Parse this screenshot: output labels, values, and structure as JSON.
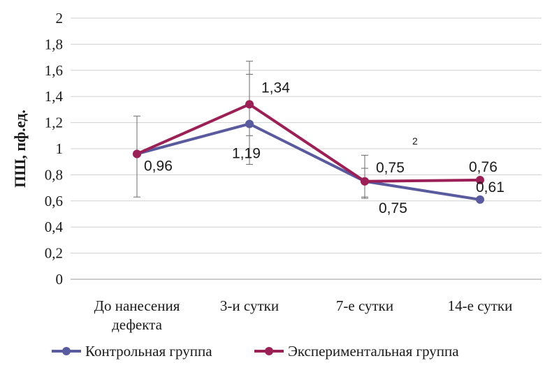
{
  "chart_data": {
    "type": "line",
    "ylabel": "ПШ, пф.ед.",
    "ylim": [
      0,
      2
    ],
    "yticks": [
      "0",
      "0,2",
      "0,4",
      "0,6",
      "0,8",
      "1",
      "1,2",
      "1,4",
      "1,6",
      "1,8",
      "2"
    ],
    "categories": [
      [
        "До нанесения",
        "дефекта"
      ],
      [
        "3-и сутки"
      ],
      [
        "7-е сутки"
      ],
      [
        "14-е сутки"
      ]
    ],
    "grid": true,
    "legend_position": "bottom",
    "annotation": "2",
    "series": [
      {
        "name": "Контрольная группа",
        "color": "#5a5a9e",
        "values": [
          0.96,
          1.19,
          0.75,
          0.61
        ],
        "labels": [
          "",
          "1,19",
          "0,75",
          "0,61"
        ],
        "error_low": [
          0.63,
          0.88,
          0.62,
          null
        ],
        "error_high": [
          1.25,
          1.57,
          0.85,
          null
        ]
      },
      {
        "name": "Экспериментальная группа",
        "color": "#9b2056",
        "values": [
          0.96,
          1.34,
          0.75,
          0.76
        ],
        "labels": [
          "0,96",
          "1,34",
          "0,75",
          "0,76"
        ],
        "error_low": [
          null,
          1.1,
          0.63,
          null
        ],
        "error_high": [
          null,
          1.67,
          0.95,
          null
        ]
      }
    ]
  }
}
